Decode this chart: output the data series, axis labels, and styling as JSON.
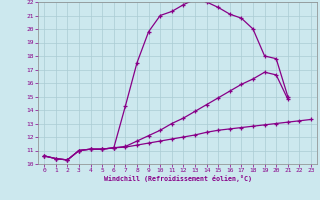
{
  "xlabel": "Windchill (Refroidissement éolien,°C)",
  "background_color": "#cce8ee",
  "grid_color": "#aaccd4",
  "line_color": "#880088",
  "xlim": [
    -0.5,
    23.5
  ],
  "ylim": [
    10.0,
    22.0
  ],
  "xticks": [
    0,
    1,
    2,
    3,
    4,
    5,
    6,
    7,
    8,
    9,
    10,
    11,
    12,
    13,
    14,
    15,
    16,
    17,
    18,
    19,
    20,
    21,
    22,
    23
  ],
  "yticks": [
    10,
    11,
    12,
    13,
    14,
    15,
    16,
    17,
    18,
    19,
    20,
    21,
    22
  ],
  "curve1_x": [
    0,
    1,
    2,
    3,
    4,
    5,
    6,
    7,
    8,
    9,
    10,
    11,
    12,
    13,
    14,
    15,
    16,
    17,
    18,
    19,
    20,
    21
  ],
  "curve1_y": [
    10.6,
    10.4,
    10.3,
    11.0,
    11.1,
    11.1,
    11.2,
    14.3,
    17.5,
    19.8,
    21.0,
    21.3,
    21.8,
    22.2,
    22.0,
    21.6,
    21.1,
    20.8,
    20.0,
    18.0,
    17.8,
    15.0
  ],
  "curve2_x": [
    0,
    1,
    2,
    3,
    4,
    5,
    6,
    7,
    8,
    9,
    10,
    11,
    12,
    13,
    14,
    15,
    16,
    17,
    18,
    19,
    20,
    21,
    22,
    23
  ],
  "curve2_y": [
    10.6,
    10.4,
    10.3,
    11.0,
    11.1,
    11.1,
    11.2,
    11.25,
    11.4,
    11.55,
    11.7,
    11.85,
    12.0,
    12.15,
    12.35,
    12.5,
    12.6,
    12.7,
    12.8,
    12.9,
    13.0,
    13.1,
    13.2,
    13.3
  ],
  "curve3_x": [
    0,
    1,
    2,
    3,
    4,
    5,
    6,
    7,
    8,
    9,
    10,
    11,
    12,
    13,
    14,
    15,
    16,
    17,
    18,
    19,
    20,
    21
  ],
  "curve3_y": [
    10.6,
    10.4,
    10.3,
    11.0,
    11.1,
    11.1,
    11.2,
    11.3,
    11.7,
    12.1,
    12.5,
    13.0,
    13.4,
    13.9,
    14.4,
    14.9,
    15.4,
    15.9,
    16.3,
    16.8,
    16.6,
    14.8
  ]
}
